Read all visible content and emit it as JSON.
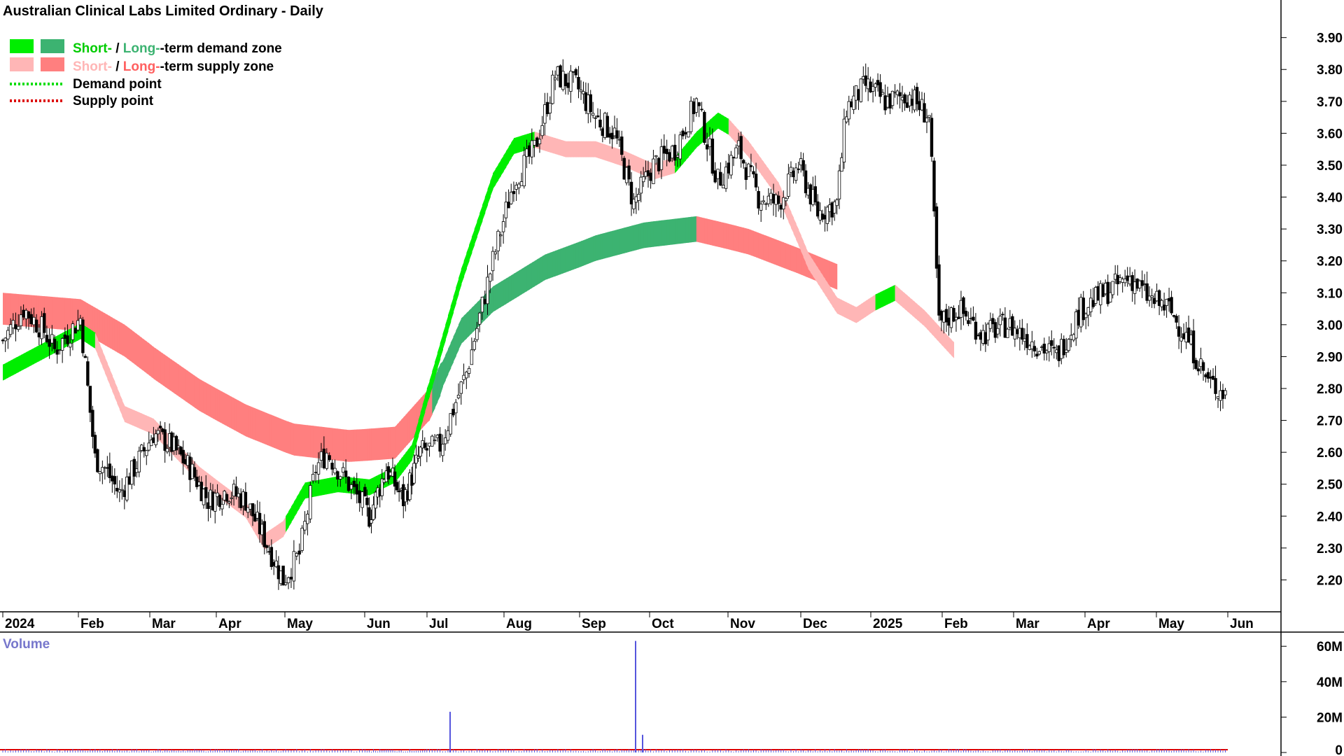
{
  "title": "Australian Clinical Labs Limited Ordinary - Daily",
  "legend": {
    "demand_short": "Short-",
    "demand_sep": " / ",
    "demand_long": "Long-",
    "demand_tail": "-term demand zone",
    "supply_short": "Short-",
    "supply_sep": " / ",
    "supply_long": "Long-",
    "supply_tail": "-term supply zone",
    "demand_point": "Demand point",
    "supply_point": "Supply point"
  },
  "volume_label": "Volume",
  "colors": {
    "demand_short": "#00ee00",
    "demand_long": "#3cb371",
    "supply_short": "#ffb6b6",
    "supply_long": "#ff7f7f",
    "overlap": "#ff6a1a",
    "volume": "#5555dd",
    "volume_avg": "#dd0000",
    "candle": "#000000"
  },
  "chart_data": {
    "type": "candlestick",
    "x_labels": [
      "2024",
      "Feb",
      "Mar",
      "Apr",
      "May",
      "Jun",
      "Jul",
      "Aug",
      "Sep",
      "Oct",
      "Nov",
      "Dec",
      "2025",
      "Feb",
      "Mar",
      "Apr",
      "May",
      "Jun"
    ],
    "y_ticks": [
      "3.90",
      "3.80",
      "3.70",
      "3.60",
      "3.50",
      "3.40",
      "3.30",
      "3.20",
      "3.10",
      "3.00",
      "2.90",
      "2.80",
      "2.70",
      "2.60",
      "2.50",
      "2.40",
      "2.30",
      "2.20"
    ],
    "ylim": [
      2.1,
      3.93
    ],
    "volume_ticks": [
      "60M",
      "40M",
      "20M",
      "0"
    ],
    "volume_ylim": [
      0,
      68
    ],
    "close_path": [
      [
        0,
        2.95
      ],
      [
        0.4,
        3.05
      ],
      [
        0.8,
        2.98
      ],
      [
        1.0,
        2.92
      ],
      [
        1.5,
        3.02
      ],
      [
        1.8,
        2.58
      ],
      [
        2.0,
        2.55
      ],
      [
        2.3,
        2.47
      ],
      [
        2.6,
        2.55
      ],
      [
        3.0,
        2.66
      ],
      [
        3.4,
        2.62
      ],
      [
        3.8,
        2.55
      ],
      [
        4.2,
        2.45
      ],
      [
        4.6,
        2.48
      ],
      [
        5.0,
        2.45
      ],
      [
        5.4,
        2.33
      ],
      [
        5.8,
        2.2
      ],
      [
        6.1,
        2.28
      ],
      [
        6.4,
        2.55
      ],
      [
        6.6,
        2.6
      ],
      [
        7.0,
        2.5
      ],
      [
        7.4,
        2.4
      ],
      [
        7.8,
        2.55
      ],
      [
        8.2,
        2.45
      ],
      [
        8.6,
        2.6
      ],
      [
        9.0,
        2.62
      ],
      [
        9.5,
        2.85
      ],
      [
        10.0,
        3.2
      ],
      [
        10.4,
        3.45
      ],
      [
        10.8,
        3.55
      ],
      [
        11.2,
        3.78
      ],
      [
        11.6,
        3.75
      ],
      [
        12.0,
        3.65
      ],
      [
        12.4,
        3.6
      ],
      [
        12.8,
        3.38
      ],
      [
        13.2,
        3.5
      ],
      [
        13.6,
        3.55
      ],
      [
        14.0,
        3.7
      ],
      [
        14.4,
        3.45
      ],
      [
        14.8,
        3.55
      ],
      [
        15.2,
        3.4
      ],
      [
        15.6,
        3.38
      ],
      [
        16.0,
        3.5
      ],
      [
        16.4,
        3.35
      ],
      [
        16.8,
        3.38
      ],
      [
        17.0,
        3.68
      ],
      [
        17.4,
        3.75
      ],
      [
        17.8,
        3.7
      ],
      [
        18.3,
        3.72
      ],
      [
        18.7,
        3.65
      ],
      [
        18.9,
        3.0
      ],
      [
        19.3,
        3.05
      ],
      [
        19.8,
        2.97
      ],
      [
        20.3,
        3.0
      ],
      [
        20.8,
        2.95
      ],
      [
        21.3,
        2.9
      ],
      [
        21.8,
        3.05
      ],
      [
        22.3,
        3.1
      ],
      [
        22.8,
        3.15
      ],
      [
        23.2,
        3.08
      ],
      [
        23.6,
        3.05
      ],
      [
        24.0,
        2.95
      ],
      [
        24.4,
        2.82
      ],
      [
        24.8,
        2.78
      ]
    ],
    "short_term_zone_mid": [
      [
        0,
        2.85,
        "demand"
      ],
      [
        1.5,
        2.98,
        "demand"
      ],
      [
        1.8,
        2.95,
        "supply"
      ],
      [
        2.4,
        2.72,
        "supply"
      ],
      [
        3.0,
        2.68,
        "supply"
      ],
      [
        4.0,
        2.53,
        "supply"
      ],
      [
        5.0,
        2.42,
        "supply"
      ],
      [
        5.4,
        2.32,
        "supply"
      ],
      [
        5.8,
        2.36,
        "demand"
      ],
      [
        6.2,
        2.48,
        "demand"
      ],
      [
        6.8,
        2.5,
        "demand"
      ],
      [
        7.4,
        2.49,
        "demand"
      ],
      [
        8.0,
        2.53,
        "demand"
      ],
      [
        8.4,
        2.6,
        "demand"
      ],
      [
        8.8,
        2.8,
        "demand"
      ],
      [
        9.4,
        3.15,
        "demand"
      ],
      [
        10.0,
        3.45,
        "demand"
      ],
      [
        10.4,
        3.56,
        "demand"
      ],
      [
        10.8,
        3.58,
        "supply"
      ],
      [
        11.4,
        3.55,
        "supply"
      ],
      [
        12.0,
        3.55,
        "supply"
      ],
      [
        12.6,
        3.52,
        "supply"
      ],
      [
        13.2,
        3.48,
        "supply"
      ],
      [
        13.6,
        3.5,
        "demand"
      ],
      [
        14.0,
        3.58,
        "demand"
      ],
      [
        14.4,
        3.64,
        "demand"
      ],
      [
        14.6,
        3.62,
        "supply"
      ],
      [
        15.0,
        3.55,
        "supply"
      ],
      [
        15.6,
        3.42,
        "supply"
      ],
      [
        16.2,
        3.2,
        "supply"
      ],
      [
        16.8,
        3.06,
        "supply"
      ],
      [
        17.2,
        3.03,
        "supply"
      ],
      [
        17.6,
        3.07,
        "demand"
      ],
      [
        18.0,
        3.1,
        "supply"
      ],
      [
        18.6,
        3.02,
        "supply"
      ],
      [
        19.2,
        2.92,
        "supply"
      ]
    ],
    "long_term_zone_mid": [
      [
        0,
        3.05,
        "supply"
      ],
      [
        1.5,
        3.03,
        "supply"
      ],
      [
        2.4,
        2.95,
        "supply"
      ],
      [
        3.0,
        2.88,
        "supply"
      ],
      [
        4.0,
        2.78,
        "supply"
      ],
      [
        5.0,
        2.7,
        "supply"
      ],
      [
        6.0,
        2.64,
        "supply"
      ],
      [
        7.0,
        2.62,
        "supply"
      ],
      [
        8.0,
        2.63,
        "supply"
      ],
      [
        8.8,
        2.75,
        "demand"
      ],
      [
        9.4,
        2.98,
        "demand"
      ],
      [
        10.0,
        3.08,
        "demand"
      ],
      [
        11.0,
        3.18,
        "demand"
      ],
      [
        12.0,
        3.24,
        "demand"
      ],
      [
        13.0,
        3.28,
        "demand"
      ],
      [
        14.0,
        3.3,
        "supply"
      ],
      [
        15.0,
        3.26,
        "supply"
      ],
      [
        16.0,
        3.2,
        "supply"
      ],
      [
        16.8,
        3.15,
        "supply"
      ]
    ],
    "volume_spikes": [
      {
        "month_index": 6.3,
        "value": 23
      },
      {
        "month_index": 8.8,
        "value": 63
      },
      {
        "month_index": 8.9,
        "value": 10
      }
    ]
  }
}
